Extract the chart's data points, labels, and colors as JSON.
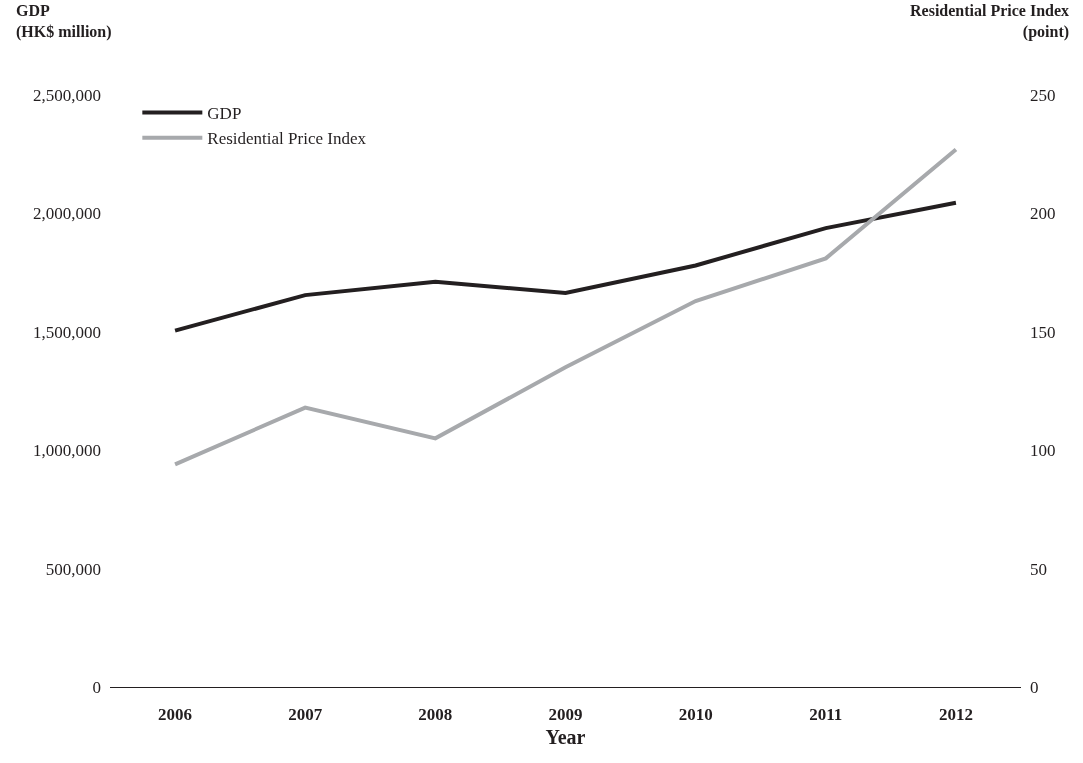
{
  "chart_data": {
    "type": "line",
    "xlabel": "Year",
    "ylabel": "GDP\n(HK$ million)",
    "y2label": "Residential Price Index\n(point)",
    "categories": [
      "2006",
      "2007",
      "2008",
      "2009",
      "2010",
      "2011",
      "2012"
    ],
    "series": [
      {
        "name": "GDP",
        "color": "#231f20",
        "values": [
          1505000,
          1655000,
          1711000,
          1664000,
          1780000,
          1938000,
          2045000
        ]
      },
      {
        "name": "Residential Price Index",
        "color": "#a7a9ac",
        "axis": "y2",
        "values": [
          94,
          118,
          105,
          135,
          163,
          181,
          227
        ]
      }
    ],
    "ylim": [
      0,
      2500000
    ],
    "yticks": [
      {
        "value": 0,
        "label": "0"
      },
      {
        "value": 500000,
        "label": "500,000"
      },
      {
        "value": 1000000,
        "label": "1,000,000"
      },
      {
        "value": 1500000,
        "label": "1,500,000"
      },
      {
        "value": 2000000,
        "label": "2,000,000"
      },
      {
        "value": 2500000,
        "label": "2,500,000"
      }
    ],
    "y2lim": [
      0,
      250
    ],
    "y2ticks": [
      0,
      50,
      100,
      150,
      200,
      250
    ],
    "legend": "top left",
    "marker": "none",
    "line_style": "solid"
  }
}
